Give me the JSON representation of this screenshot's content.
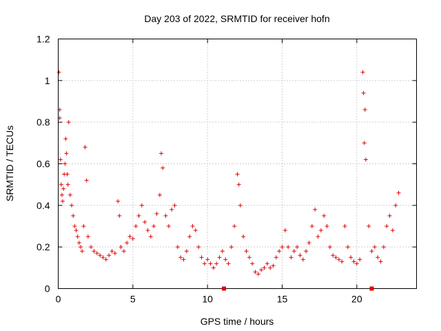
{
  "chart_data": {
    "type": "scatter",
    "title": "Day 203 of 2022, SRMTID for receiver hofn",
    "xlabel": "GPS time / hours",
    "ylabel": "SRMTID / TECUs",
    "xlim": [
      0,
      24
    ],
    "ylim": [
      0,
      1.2
    ],
    "grid": true,
    "x_ticks": [
      0,
      5,
      10,
      15,
      20
    ],
    "x_tick_labels": [
      "0",
      "5",
      "10",
      "15",
      "20"
    ],
    "y_ticks": [
      0,
      0.2,
      0.4,
      0.6,
      0.8,
      1.0,
      1.2
    ],
    "y_tick_labels": [
      "0",
      "0.2",
      "0.4",
      "0.6",
      "0.8",
      "1",
      "1.2"
    ],
    "series_color": "#e00000",
    "axis_markers_x": [
      11.1,
      21.0
    ],
    "x": [
      0.05,
      0.1,
      0.1,
      0.15,
      0.2,
      0.25,
      0.3,
      0.35,
      0.4,
      0.45,
      0.5,
      0.55,
      0.6,
      0.65,
      0.7,
      0.8,
      0.9,
      1.0,
      1.1,
      1.2,
      1.3,
      1.4,
      1.5,
      1.6,
      1.7,
      1.8,
      1.9,
      2.0,
      2.2,
      2.4,
      2.6,
      2.8,
      3.0,
      3.2,
      3.4,
      3.6,
      3.8,
      4.0,
      4.1,
      4.2,
      4.4,
      4.6,
      4.8,
      5.0,
      5.2,
      5.4,
      5.6,
      5.8,
      6.0,
      6.2,
      6.4,
      6.6,
      6.8,
      6.9,
      7.0,
      7.2,
      7.4,
      7.6,
      7.8,
      8.0,
      8.2,
      8.4,
      8.6,
      8.8,
      9.0,
      9.2,
      9.4,
      9.6,
      9.8,
      10.0,
      10.2,
      10.4,
      10.6,
      10.8,
      11.0,
      11.2,
      11.4,
      11.6,
      11.8,
      12.0,
      12.1,
      12.2,
      12.4,
      12.6,
      12.8,
      13.0,
      13.2,
      13.4,
      13.6,
      13.8,
      14.0,
      14.2,
      14.4,
      14.6,
      14.8,
      15.0,
      15.2,
      15.4,
      15.6,
      15.8,
      16.0,
      16.2,
      16.4,
      16.6,
      16.8,
      17.0,
      17.2,
      17.4,
      17.6,
      17.8,
      18.0,
      18.2,
      18.4,
      18.6,
      18.8,
      19.0,
      19.2,
      19.4,
      19.6,
      19.8,
      20.0,
      20.2,
      20.4,
      20.45,
      20.5,
      20.55,
      20.6,
      20.8,
      21.0,
      21.2,
      21.4,
      21.6,
      21.8,
      22.0,
      22.2,
      22.4,
      22.6,
      22.8
    ],
    "values": [
      1.04,
      0.86,
      0.82,
      0.62,
      0.5,
      0.45,
      0.42,
      0.48,
      0.55,
      0.6,
      0.72,
      0.65,
      0.55,
      0.5,
      0.8,
      0.45,
      0.4,
      0.35,
      0.3,
      0.28,
      0.25,
      0.22,
      0.2,
      0.18,
      0.3,
      0.68,
      0.52,
      0.25,
      0.2,
      0.18,
      0.17,
      0.16,
      0.15,
      0.14,
      0.16,
      0.18,
      0.17,
      0.42,
      0.35,
      0.2,
      0.18,
      0.22,
      0.25,
      0.24,
      0.3,
      0.35,
      0.4,
      0.32,
      0.28,
      0.25,
      0.3,
      0.36,
      0.45,
      0.65,
      0.58,
      0.35,
      0.3,
      0.38,
      0.4,
      0.2,
      0.15,
      0.14,
      0.18,
      0.25,
      0.3,
      0.28,
      0.2,
      0.15,
      0.12,
      0.14,
      0.12,
      0.1,
      0.12,
      0.15,
      0.18,
      0.14,
      0.12,
      0.2,
      0.3,
      0.55,
      0.5,
      0.4,
      0.25,
      0.18,
      0.15,
      0.12,
      0.08,
      0.07,
      0.09,
      0.1,
      0.12,
      0.1,
      0.11,
      0.15,
      0.18,
      0.2,
      0.28,
      0.2,
      0.15,
      0.18,
      0.2,
      0.16,
      0.14,
      0.18,
      0.22,
      0.3,
      0.38,
      0.25,
      0.28,
      0.35,
      0.3,
      0.2,
      0.16,
      0.15,
      0.14,
      0.13,
      0.3,
      0.2,
      0.15,
      0.13,
      0.12,
      0.14,
      1.04,
      0.94,
      0.7,
      0.86,
      0.62,
      0.3,
      0.18,
      0.2,
      0.15,
      0.13,
      0.2,
      0.3,
      0.35,
      0.28,
      0.4,
      0.46
    ]
  }
}
